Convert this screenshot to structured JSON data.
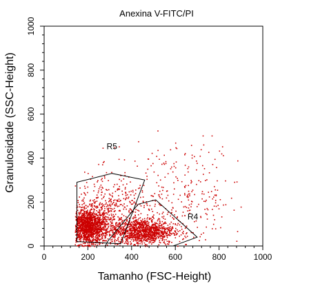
{
  "chart_data": {
    "type": "scatter",
    "title": "Anexina V-FITC/PI",
    "xlabel": "Tamanho (FSC-Height)",
    "ylabel": "Granulosidade (SSC-Height)",
    "xlim": [
      0,
      1000
    ],
    "ylim": [
      0,
      1000
    ],
    "xticks": [
      "0",
      "200",
      "400",
      "600",
      "800",
      "1000"
    ],
    "yticks": [
      "0",
      "200",
      "400",
      "600",
      "800",
      "1000"
    ],
    "point_color": "#cc0000",
    "clusters": [
      {
        "cx": 200,
        "cy": 90,
        "sx": 45,
        "sy": 40,
        "n": 1400
      },
      {
        "cx": 450,
        "cy": 70,
        "sx": 70,
        "sy": 28,
        "n": 1100
      },
      {
        "cx": 300,
        "cy": 150,
        "sx": 80,
        "sy": 90,
        "n": 450
      },
      {
        "cx": 600,
        "cy": 220,
        "sx": 160,
        "sy": 120,
        "n": 350
      }
    ],
    "gates": [
      {
        "name": "R5",
        "label_pos": [
          310,
          440
        ],
        "polygon": [
          [
            150,
            290
          ],
          [
            310,
            330
          ],
          [
            460,
            300
          ],
          [
            350,
            10
          ],
          [
            150,
            20
          ]
        ]
      },
      {
        "name": "R4",
        "label_pos": [
          680,
          120
        ],
        "polygon": [
          [
            290,
            20
          ],
          [
            430,
            190
          ],
          [
            510,
            210
          ],
          [
            700,
            40
          ],
          [
            590,
            0
          ],
          [
            280,
            0
          ]
        ]
      }
    ]
  }
}
